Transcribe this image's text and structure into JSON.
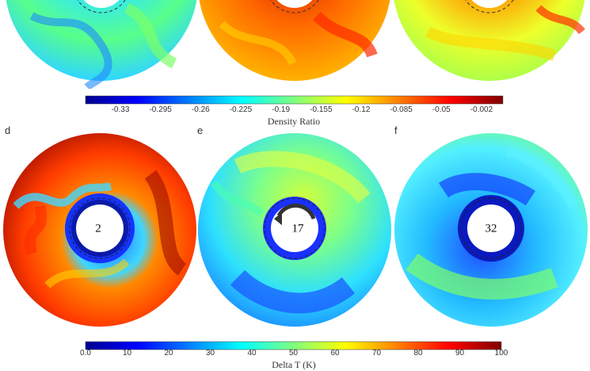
{
  "colorbars": {
    "density": {
      "label": "Density Ratio",
      "ticks": [
        "-0.33",
        "-0.295",
        "-0.26",
        "-0.225",
        "-0.19",
        "-0.155",
        "-0.12",
        "-0.085",
        "-0.05",
        "-0.002"
      ]
    },
    "temperature": {
      "label": "Delta T (K)",
      "ticks": [
        "0.0",
        "10",
        "20",
        "30",
        "40",
        "50",
        "60",
        "70",
        "80",
        "90",
        "100"
      ]
    }
  },
  "panels": [
    {
      "letter": "",
      "center_label": ""
    },
    {
      "letter": "",
      "center_label": ""
    },
    {
      "letter": "",
      "center_label": ""
    },
    {
      "letter": "d",
      "center_label": "2"
    },
    {
      "letter": "e",
      "center_label": "17"
    },
    {
      "letter": "f",
      "center_label": "32"
    }
  ],
  "colors": {
    "jet_dark_blue": "#00008f",
    "jet_blue": "#0000ff",
    "jet_cyan": "#00ffff",
    "jet_yellow": "#ffff00",
    "jet_red": "#ff0000",
    "jet_dark_red": "#800000"
  }
}
